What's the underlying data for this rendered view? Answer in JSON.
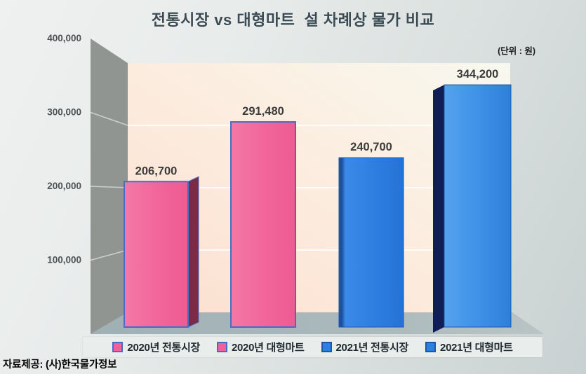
{
  "title": "전통시장 vs 대형마트  설 차례상 물가 비교",
  "unit_note": "(단위 : 원)",
  "source": "자료제공: (사)한국물가정보",
  "chart_data": {
    "type": "bar",
    "title": "전통시장 vs 대형마트  설 차례상 물가 비교",
    "unit_note": "(단위 : 원)",
    "source": "자료제공: (사)한국물가정보",
    "ylim": [
      0,
      400000
    ],
    "grid": true,
    "legend_position": "bottom",
    "ytick_labels": [
      "400,000",
      "300,000",
      "200,000",
      "100,000"
    ],
    "ytick_values": [
      400000,
      300000,
      200000,
      100000
    ],
    "series": [
      {
        "name": "2020년 전통시장",
        "value": 206700,
        "label": "206,700",
        "color_main": "#f2689c",
        "color_side": "#7c2b47",
        "outline": "#4a6cc0",
        "legend_color": "#f0609a",
        "legend_border": "#4a6cc0"
      },
      {
        "name": "2020년 대형마트",
        "value": 291480,
        "label": "291,480",
        "color_main": "#f2689c",
        "color_side": "#7c2b47",
        "outline": "#4a6cc0",
        "legend_color": "#f0609a",
        "legend_border": "#4a6cc0"
      },
      {
        "name": "2021년 전통시장",
        "value": 240700,
        "label": "240,700",
        "color_main": "#2d7de0",
        "color_side": "#123a7a",
        "outline": "#1d55a8",
        "legend_color": "#2f7fe0",
        "legend_border": "#1d55a8"
      },
      {
        "name": "2021년 대형마트",
        "value": 344200,
        "label": "344,200",
        "color_main": "#4598ea",
        "color_side": "#0f1e55",
        "outline": "#1d55a8",
        "legend_color": "#2f7fe0",
        "legend_border": "#1d55a8"
      }
    ],
    "value_label_color": "#3b3b3b",
    "axis_label_color": "#4d5254"
  }
}
